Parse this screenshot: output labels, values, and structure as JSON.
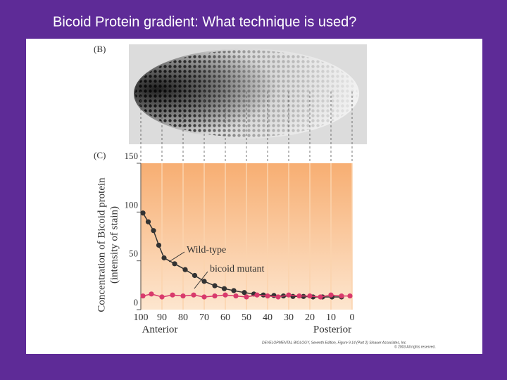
{
  "slide_title": "Bicoid Protein gradient: What technique is used?",
  "chart_data": {
    "type": "line",
    "panel_labels": [
      "(B)",
      "(C)"
    ],
    "ylabel": [
      "Concentration of Bicoid protein",
      "(intensity of stain)"
    ],
    "annotations": [
      "Anterior",
      "Posterior"
    ],
    "credit": [
      "DEVELOPMENTAL BIOLOGY, Seventh Edition, Figure 9.14 (Part 2)  Sinauer Associates, Inc.",
      "© 2003 All rights reserved."
    ],
    "xlim": [
      100,
      0
    ],
    "xticks": [
      100,
      90,
      80,
      70,
      60,
      50,
      40,
      30,
      20,
      10,
      0
    ],
    "ylim": [
      0,
      150
    ],
    "yticks": [
      0,
      50,
      100,
      150
    ],
    "grid": true,
    "series": [
      {
        "name": "Wild-type",
        "color": "#333333",
        "x": [
          99,
          96.5,
          94,
          91.5,
          89,
          84,
          79,
          74.5,
          70,
          65,
          60.5,
          56,
          51,
          46.5,
          42,
          37,
          32.5,
          28,
          23,
          18.5,
          14,
          9.5,
          5
        ],
        "values": [
          99,
          90,
          81,
          66,
          53,
          47,
          41,
          35,
          29,
          24.5,
          21.5,
          19.5,
          17.5,
          16,
          15,
          14.5,
          14,
          13.5,
          13.5,
          13,
          13,
          13,
          13
        ]
      },
      {
        "name": "bicoid mutant",
        "color": "#d83a6c",
        "x": [
          99,
          95,
          90,
          85,
          80,
          75,
          70,
          65,
          60,
          55,
          50,
          45,
          40,
          35,
          30,
          25,
          20,
          15,
          10,
          5,
          1
        ],
        "values": [
          14,
          16,
          13,
          15,
          14,
          15,
          13,
          14,
          15,
          14,
          13,
          15,
          14,
          13,
          15,
          14,
          14,
          13,
          15,
          14,
          14
        ]
      }
    ]
  }
}
